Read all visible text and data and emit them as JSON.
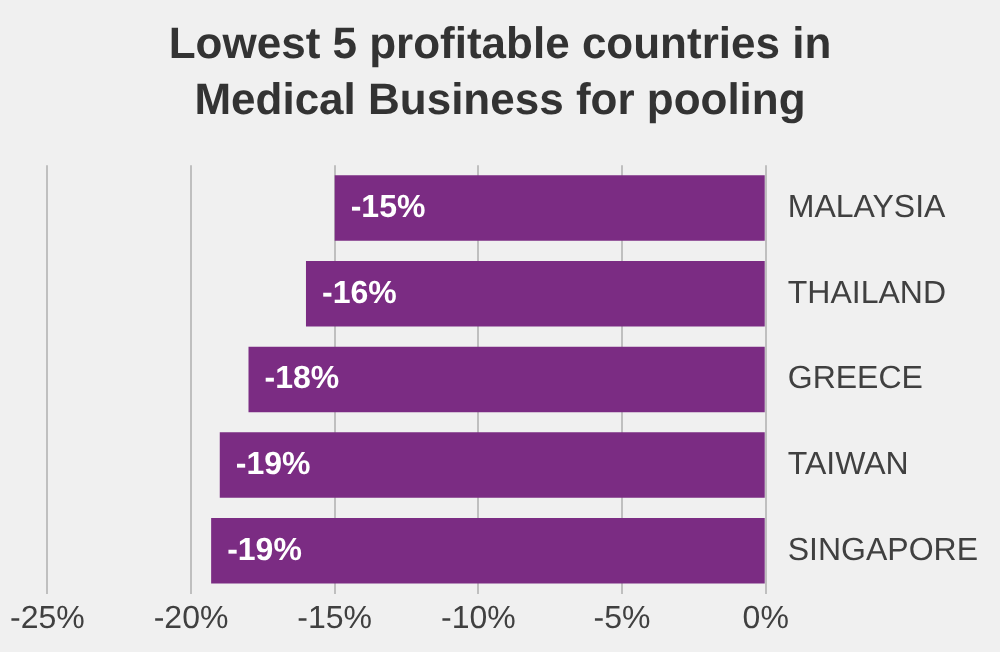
{
  "chart_data": {
    "type": "bar",
    "orientation": "horizontal",
    "title": "Lowest 5 profitable countries in Medical Business for pooling",
    "categories": [
      "MALAYSIA",
      "THAILAND",
      "GREECE",
      "TAIWAN",
      "SINGAPORE"
    ],
    "values": [
      -15,
      -16,
      -18,
      -19,
      -19.3
    ],
    "color": "#7b2c83",
    "value_labels": [
      "-15%",
      "-16%",
      "-18%",
      "-19%",
      "-19%"
    ],
    "xlim": [
      -25,
      0
    ],
    "xticks": [
      {
        "value": -25,
        "label": "-25%"
      },
      {
        "value": -20,
        "label": "-20%"
      },
      {
        "value": -15,
        "label": "-15%"
      },
      {
        "value": -10,
        "label": "-10%"
      },
      {
        "value": -5,
        "label": "-5%"
      },
      {
        "value": 0,
        "label": "0%"
      }
    ],
    "grid": "x",
    "legend": false
  }
}
